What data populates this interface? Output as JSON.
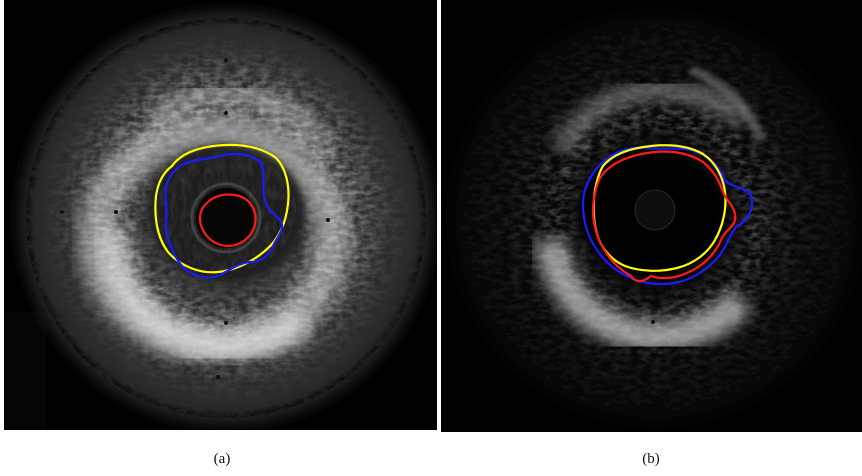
{
  "captions": {
    "a": "(a)",
    "b": "(b)"
  },
  "colors": {
    "contour_yellow": "#ffff00",
    "contour_blue": "#1a1aff",
    "contour_red": "#ff1a1a",
    "background": "#000000"
  },
  "panels": [
    {
      "id": "a",
      "type": "intravascular-ultrasound-image"
    },
    {
      "id": "b",
      "type": "intravascular-ultrasound-image"
    }
  ]
}
